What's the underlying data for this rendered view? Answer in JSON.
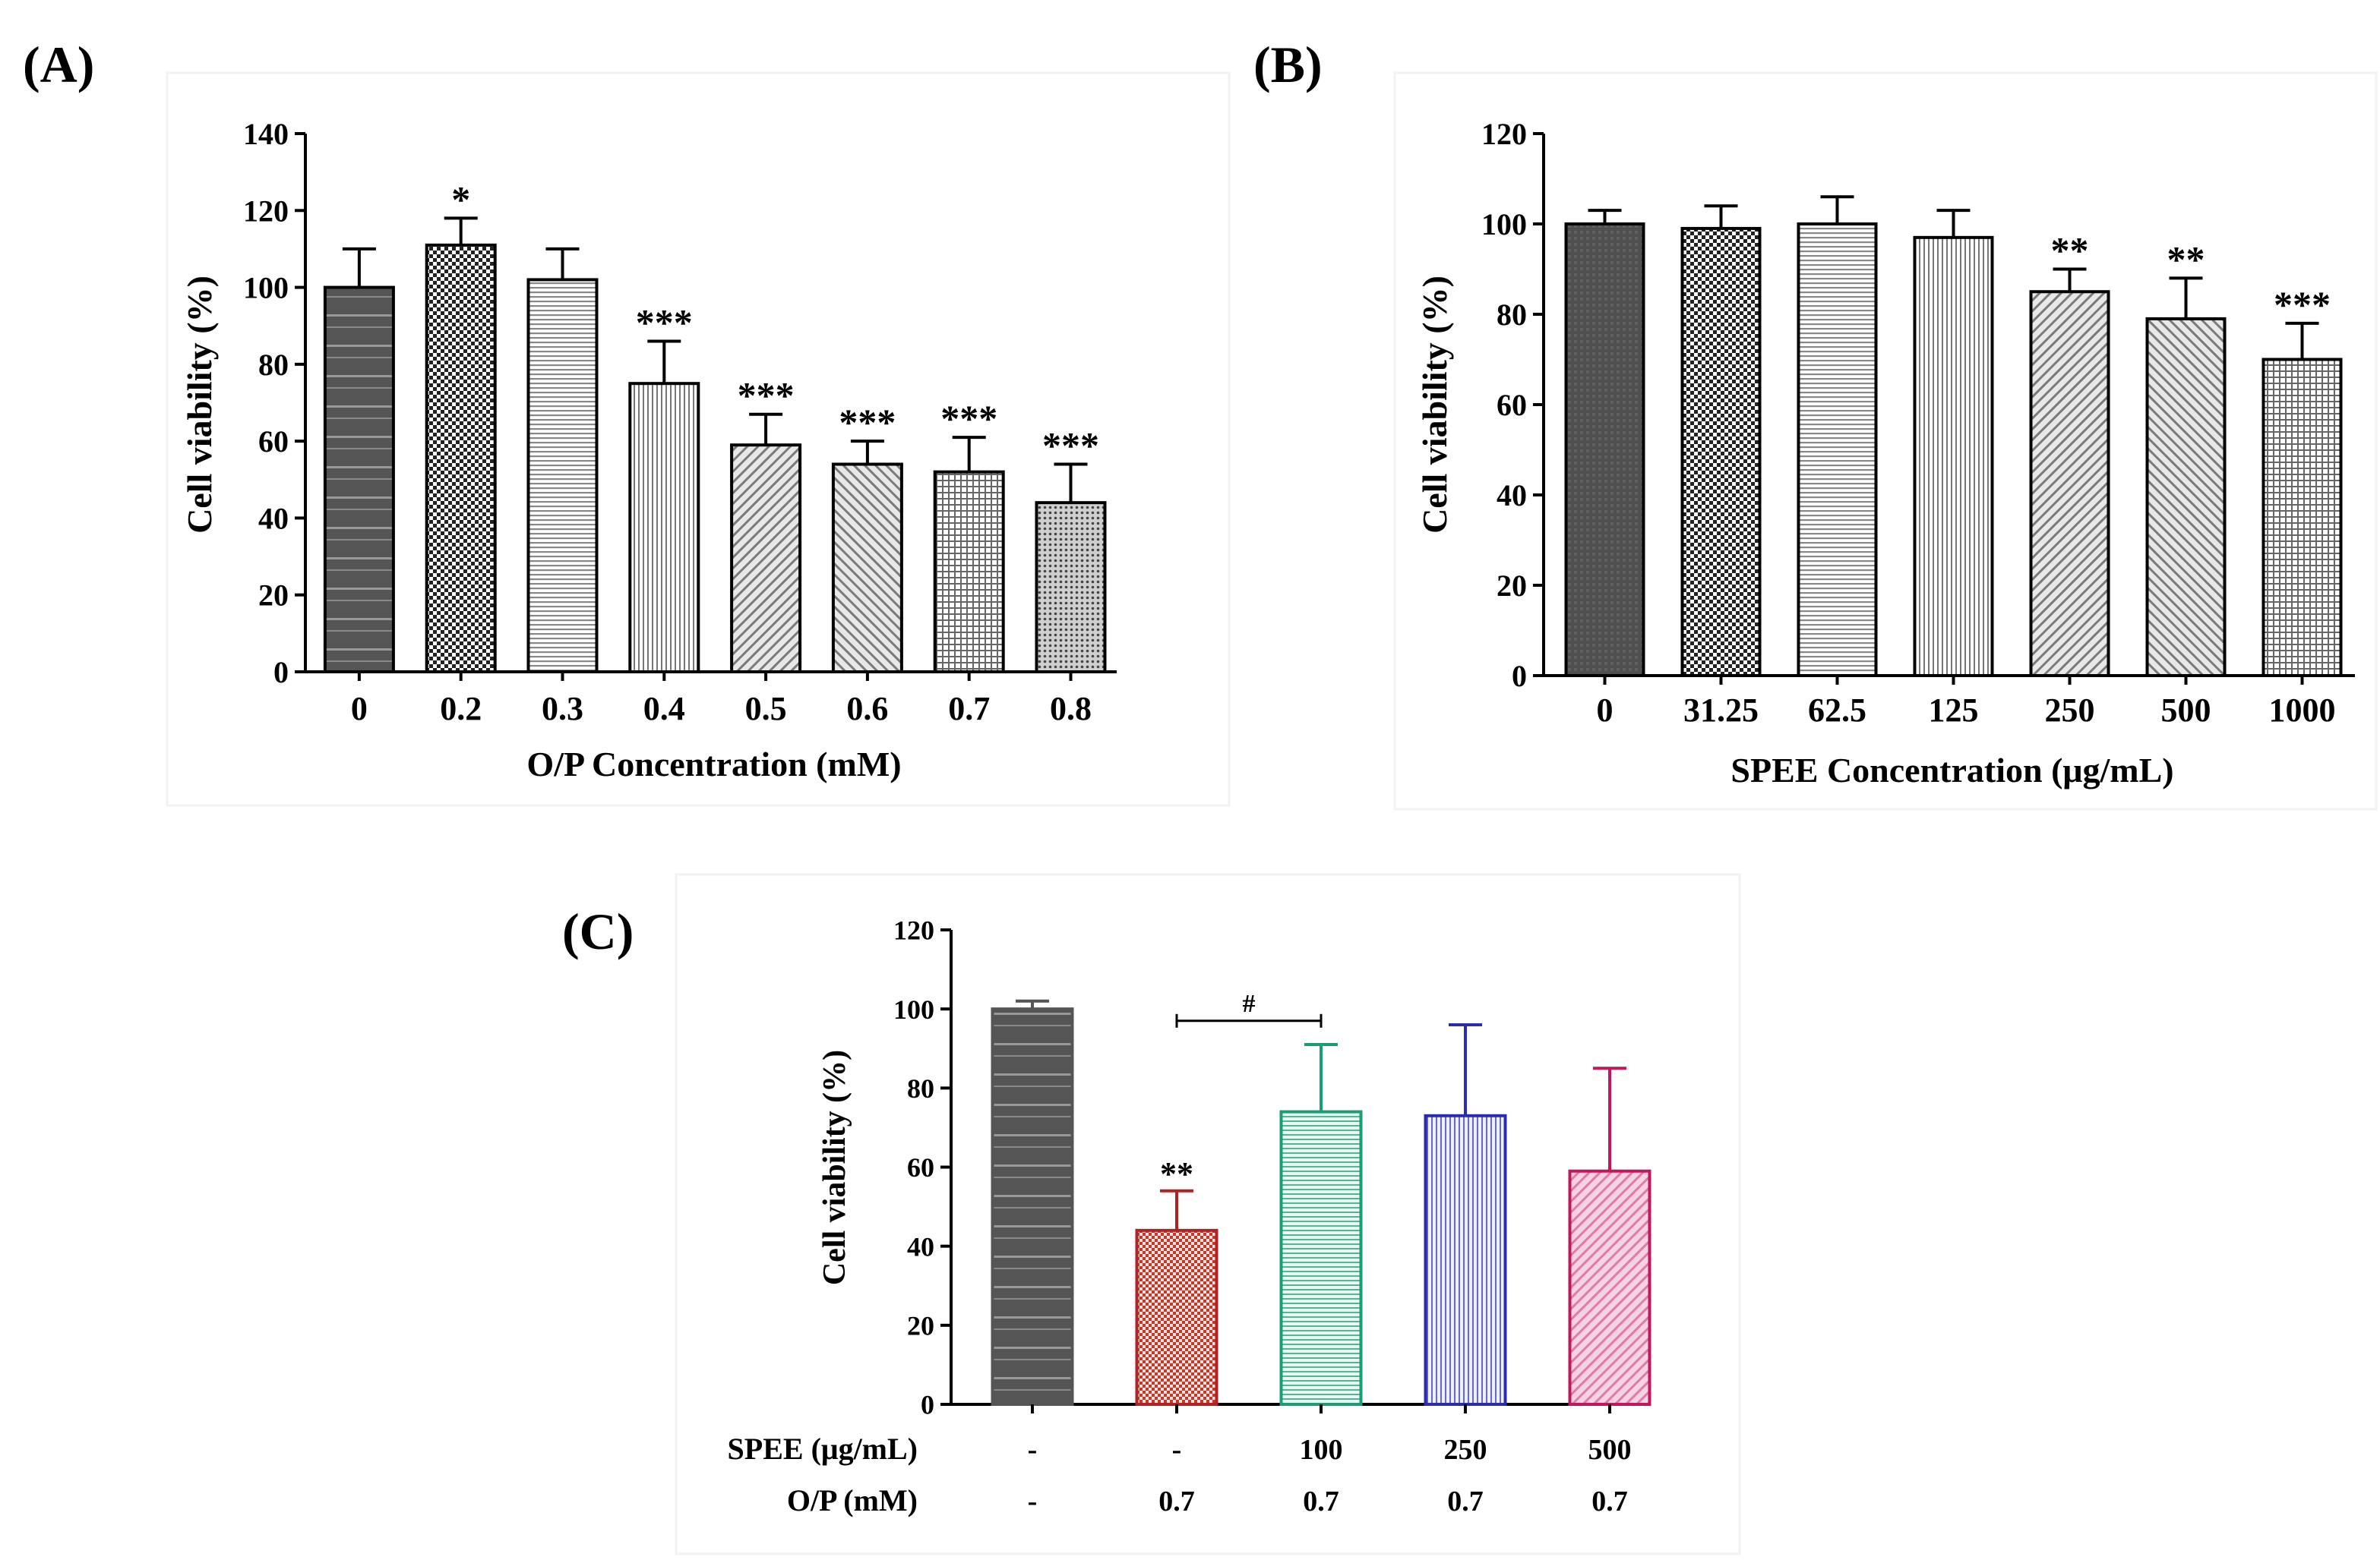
{
  "chart_data": [
    {
      "panel_label": "(A)",
      "type": "bar",
      "title": "",
      "xlabel": "O/P Concentration (mM)",
      "ylabel": "Cell viability (%)",
      "ylim": [
        0,
        140
      ],
      "yticks": [
        0,
        20,
        40,
        60,
        80,
        100,
        120,
        140
      ],
      "categories": [
        "0",
        "0.2",
        "0.3",
        "0.4",
        "0.5",
        "0.6",
        "0.7",
        "0.8"
      ],
      "values": [
        100,
        111,
        102,
        75,
        59,
        54,
        52,
        44
      ],
      "errors": [
        10,
        7,
        8,
        11,
        8,
        6,
        9,
        10
      ],
      "annotations": [
        "",
        "*",
        "",
        "***",
        "***",
        "***",
        "***",
        "***"
      ],
      "patterns": [
        "dark-gray-stripes",
        "checker",
        "light-horizontal",
        "vertical",
        "diag-right",
        "diag-left",
        "grid",
        "dots"
      ],
      "grid": false
    },
    {
      "panel_label": "(B)",
      "type": "bar",
      "title": "",
      "xlabel": "SPEE Concentration (μg/mL)",
      "ylabel": "Cell viability (%)",
      "ylim": [
        0,
        120
      ],
      "yticks": [
        0,
        20,
        40,
        60,
        80,
        100,
        120
      ],
      "categories": [
        "0",
        "31.25",
        "62.5",
        "125",
        "250",
        "500",
        "1000"
      ],
      "values": [
        100,
        99,
        100,
        97,
        85,
        79,
        70
      ],
      "errors": [
        3,
        5,
        6,
        6,
        5,
        9,
        8
      ],
      "annotations": [
        "",
        "",
        "",
        "",
        "**",
        "**",
        "***"
      ],
      "patterns": [
        "dark-gray",
        "checker",
        "light-horizontal",
        "vertical",
        "diag-right",
        "diag-left",
        "grid"
      ],
      "grid": false
    },
    {
      "panel_label": "(C)",
      "type": "bar",
      "title": "",
      "xlabel": "",
      "ylabel": "Cell viability (%)",
      "ylim": [
        0,
        120
      ],
      "yticks": [
        0,
        20,
        40,
        60,
        80,
        100,
        120
      ],
      "row_labels": [
        "SPEE (μg/mL)",
        "O/P (mM)"
      ],
      "categories_spee": [
        "-",
        "-",
        "100",
        "250",
        "500"
      ],
      "categories_op": [
        "-",
        "0.7",
        "0.7",
        "0.7",
        "0.7"
      ],
      "values": [
        100,
        44,
        74,
        73,
        59
      ],
      "errors": [
        2,
        10,
        17,
        23,
        26
      ],
      "annotations": [
        "",
        "**",
        "",
        "",
        ""
      ],
      "colors": [
        "#555555",
        "#b22222",
        "#1a9e77",
        "#2b2bb0",
        "#c2185b"
      ],
      "patterns": [
        "dark-gray-stripes",
        "checker",
        "horizontal",
        "vertical",
        "diag-right"
      ],
      "comparison": {
        "from": 1,
        "to": 2,
        "label": "#"
      },
      "grid": false
    }
  ]
}
